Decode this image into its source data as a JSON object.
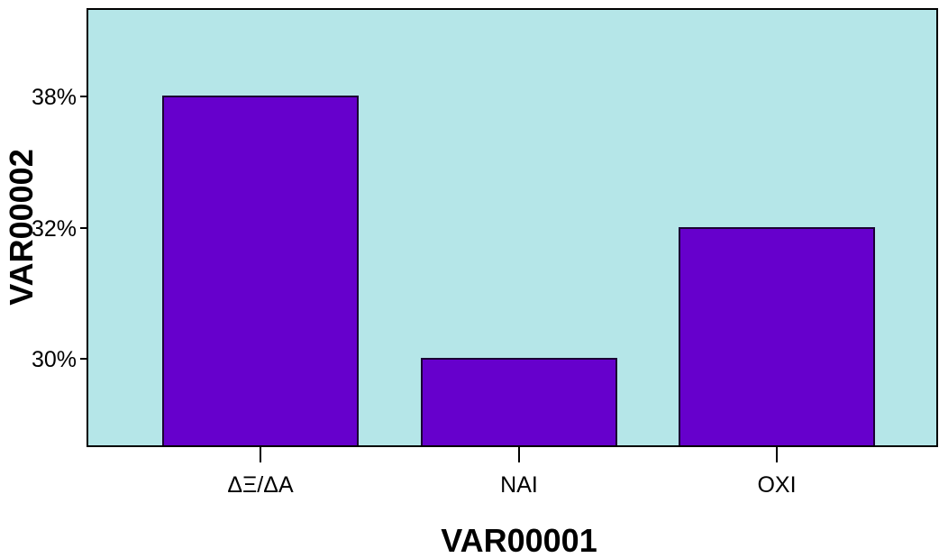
{
  "chart_data": {
    "type": "bar",
    "categories": [
      "ΔΞ/ΔΑ",
      "ΝΑΙ",
      "ΟΧΙ"
    ],
    "values": [
      38,
      30,
      32
    ],
    "value_suffix": "%",
    "yticks": [
      {
        "value": 30,
        "label": "30%"
      },
      {
        "value": 32,
        "label": "32%"
      },
      {
        "value": 38,
        "label": "38%"
      }
    ],
    "xlabel": "VAR00001",
    "ylabel": "VAR00002",
    "legend": "none",
    "grid": false,
    "colors": {
      "plot_background": "#b5e6e8",
      "bar_fill": "#6600cc",
      "bar_stroke": "#1a0033",
      "axis": "#000000"
    }
  }
}
